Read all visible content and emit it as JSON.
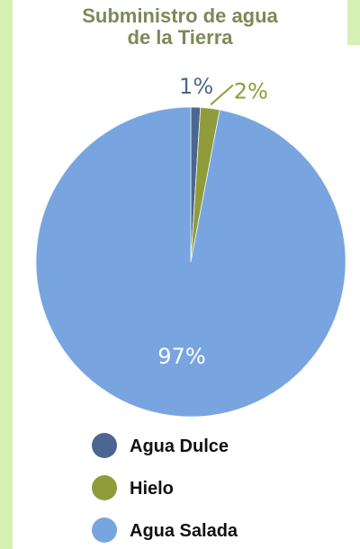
{
  "chart_data": {
    "type": "pie",
    "title_lines": [
      "Subministro de agua",
      "de la Tierra"
    ],
    "categories": [
      "Agua Dulce",
      "Hielo",
      "Agua Salada"
    ],
    "values": [
      1,
      2,
      97
    ],
    "labels": [
      "1%",
      "2%",
      "97%"
    ],
    "colors": [
      "#4b6690",
      "#909c3a",
      "#78a5df"
    ],
    "legend_position": "bottom"
  },
  "colors": {
    "title": "#7b8a57",
    "frame": "#d6f0b3",
    "label_light": "#ffffff"
  }
}
